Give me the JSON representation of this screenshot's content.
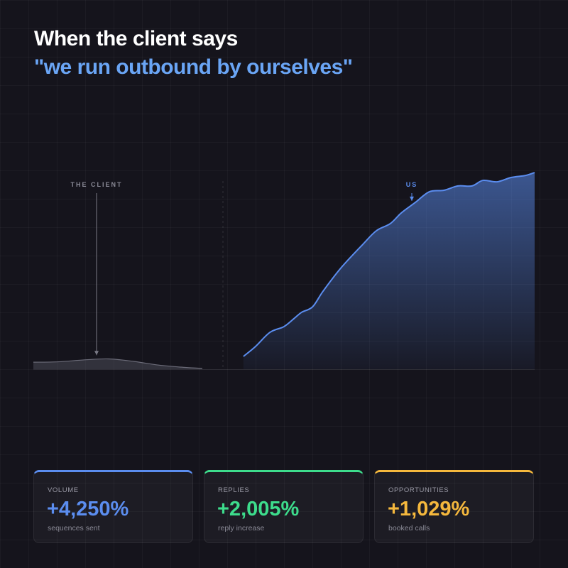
{
  "title": "When the client says",
  "subtitle": "\"we run outbound by ourselves\"",
  "chart_data": {
    "type": "area",
    "xlim": [
      0,
      100
    ],
    "ylim": [
      0,
      100
    ],
    "series": [
      {
        "name": "THE CLIENT",
        "color": "#6b6b78",
        "x": [
          0,
          5,
          10,
          15,
          20,
          25,
          30,
          33.7
        ],
        "values": [
          3.4,
          3.6,
          4.5,
          5.0,
          3.8,
          2.0,
          0.9,
          0.4
        ]
      },
      {
        "name": "US",
        "color": "#5b8def",
        "x": [
          41.9,
          44.3,
          47.2,
          50.0,
          52.1,
          53.5,
          55.7,
          57.8,
          61.3,
          65.6,
          68.4,
          71.2,
          73.4,
          76.2,
          79.0,
          81.9,
          84.7,
          87.5,
          89.7,
          92.5,
          95.3,
          98.2,
          100
        ],
        "values": [
          6.2,
          11.0,
          17.9,
          20.7,
          24.8,
          27.6,
          30.3,
          37.9,
          49.0,
          60.3,
          67.2,
          70.7,
          75.9,
          81.0,
          86.2,
          86.9,
          89.0,
          89.0,
          91.7,
          91.0,
          93.1,
          94.1,
          95.5
        ]
      }
    ]
  },
  "stats": [
    {
      "label": "VOLUME",
      "value": "+4,250%",
      "caption": "sequences sent",
      "color": "#5b8def"
    },
    {
      "label": "REPLIES",
      "value": "+2,005%",
      "caption": "reply increase",
      "color": "#3ddc8c"
    },
    {
      "label": "OPPORTUNITIES",
      "value": "+1,029%",
      "caption": "booked calls",
      "color": "#f5b83d"
    }
  ]
}
